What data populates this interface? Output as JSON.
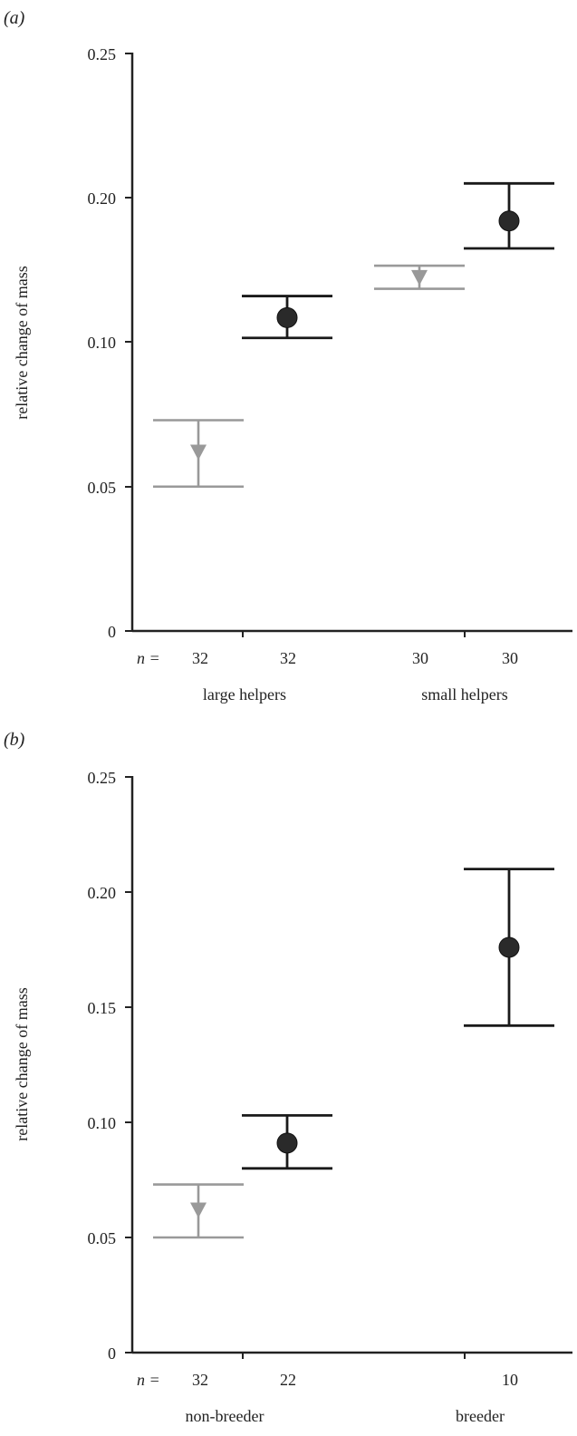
{
  "colors": {
    "grey": "#999999",
    "black": "#1a1a1a",
    "axis": "#222222"
  },
  "chart_data": [
    {
      "type": "scatter",
      "panel_label": "(a)",
      "ylabel": "relative change of mass",
      "ylim": [
        0,
        0.25
      ],
      "y_ticks": [
        "0",
        "0.05",
        "0.10",
        "0.20",
        "0.25"
      ],
      "n_prefix": "n =",
      "groups": [
        "large helpers",
        "small helpers"
      ],
      "points": [
        {
          "group": "large helpers",
          "n": "32",
          "marker": "triangle-down",
          "color": "grey",
          "mean": 0.062,
          "lower": 0.05,
          "upper": 0.073
        },
        {
          "group": "large helpers",
          "n": "32",
          "marker": "circle",
          "color": "black",
          "mean": 0.117,
          "lower": 0.103,
          "upper": 0.132
        },
        {
          "group": "small helpers",
          "n": "30",
          "marker": "triangle-down",
          "color": "grey",
          "mean": 0.145,
          "lower": 0.137,
          "upper": 0.153
        },
        {
          "group": "small helpers",
          "n": "30",
          "marker": "circle",
          "color": "black",
          "mean": 0.184,
          "lower": 0.165,
          "upper": 0.205
        }
      ]
    },
    {
      "type": "scatter",
      "panel_label": "(b)",
      "ylabel": "relative change of mass",
      "ylim": [
        0,
        0.25
      ],
      "y_ticks": [
        "0",
        "0.05",
        "0.10",
        "0.15",
        "0.20",
        "0.25"
      ],
      "n_prefix": "n =",
      "groups": [
        "non-breeder",
        "breeder"
      ],
      "points": [
        {
          "group": "non-breeder",
          "n": "32",
          "marker": "triangle-down",
          "color": "grey",
          "mean": 0.062,
          "lower": 0.05,
          "upper": 0.073
        },
        {
          "group": "non-breeder",
          "n": "22",
          "marker": "circle",
          "color": "black",
          "mean": 0.091,
          "lower": 0.08,
          "upper": 0.103
        },
        {
          "group": "breeder",
          "n": "10",
          "marker": "circle",
          "color": "black",
          "mean": 0.176,
          "lower": 0.142,
          "upper": 0.21
        }
      ]
    }
  ]
}
